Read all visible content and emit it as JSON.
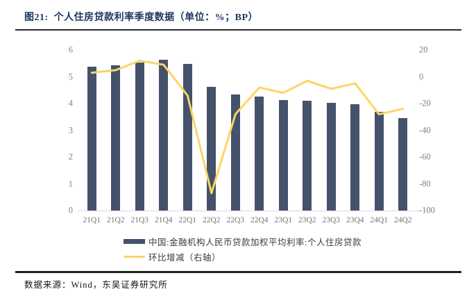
{
  "header": {
    "title": "图21:  个人住房贷款利率季度数据（单位：%；BP）"
  },
  "chart_data": {
    "type": "bar",
    "title": "个人住房贷款利率季度数据",
    "units": "%；BP",
    "categories": [
      "21Q1",
      "21Q2",
      "21Q3",
      "21Q4",
      "22Q1",
      "22Q2",
      "22Q3",
      "22Q4",
      "23Q1",
      "23Q2",
      "23Q3",
      "23Q4",
      "24Q1",
      "24Q2"
    ],
    "series": [
      {
        "name": "中国:金融机构人民币贷款加权平均利率:个人住房贷款",
        "type": "bar",
        "axis": "left",
        "values": [
          5.37,
          5.42,
          5.54,
          5.63,
          5.49,
          4.62,
          4.34,
          4.26,
          4.14,
          4.11,
          4.02,
          3.97,
          3.69,
          3.45
        ]
      },
      {
        "name": "环比增减（右轴）",
        "type": "line",
        "axis": "right",
        "values": [
          3,
          5,
          12,
          9,
          -14,
          -87,
          -28,
          -8,
          -12,
          -3,
          -9,
          -5,
          -28,
          -24
        ]
      }
    ],
    "left_axis": {
      "min": 0,
      "max": 6,
      "ticks": [
        6,
        5,
        4,
        3,
        2,
        1,
        0
      ]
    },
    "right_axis": {
      "min": -100,
      "max": 20,
      "ticks": [
        20,
        0,
        -20,
        -40,
        -60,
        -80,
        -100
      ]
    },
    "grid": false,
    "legend_position": "bottom"
  },
  "colors": {
    "bar": "#44526b",
    "line": "#fbd566",
    "title": "#1f3864"
  },
  "legend": {
    "series1": "中国:金融机构人民币贷款加权平均利率:个人住房贷款",
    "series2": "环比增减（右轴）"
  },
  "footer": {
    "source": "数据来源：Wind，东吴证券研究所"
  }
}
